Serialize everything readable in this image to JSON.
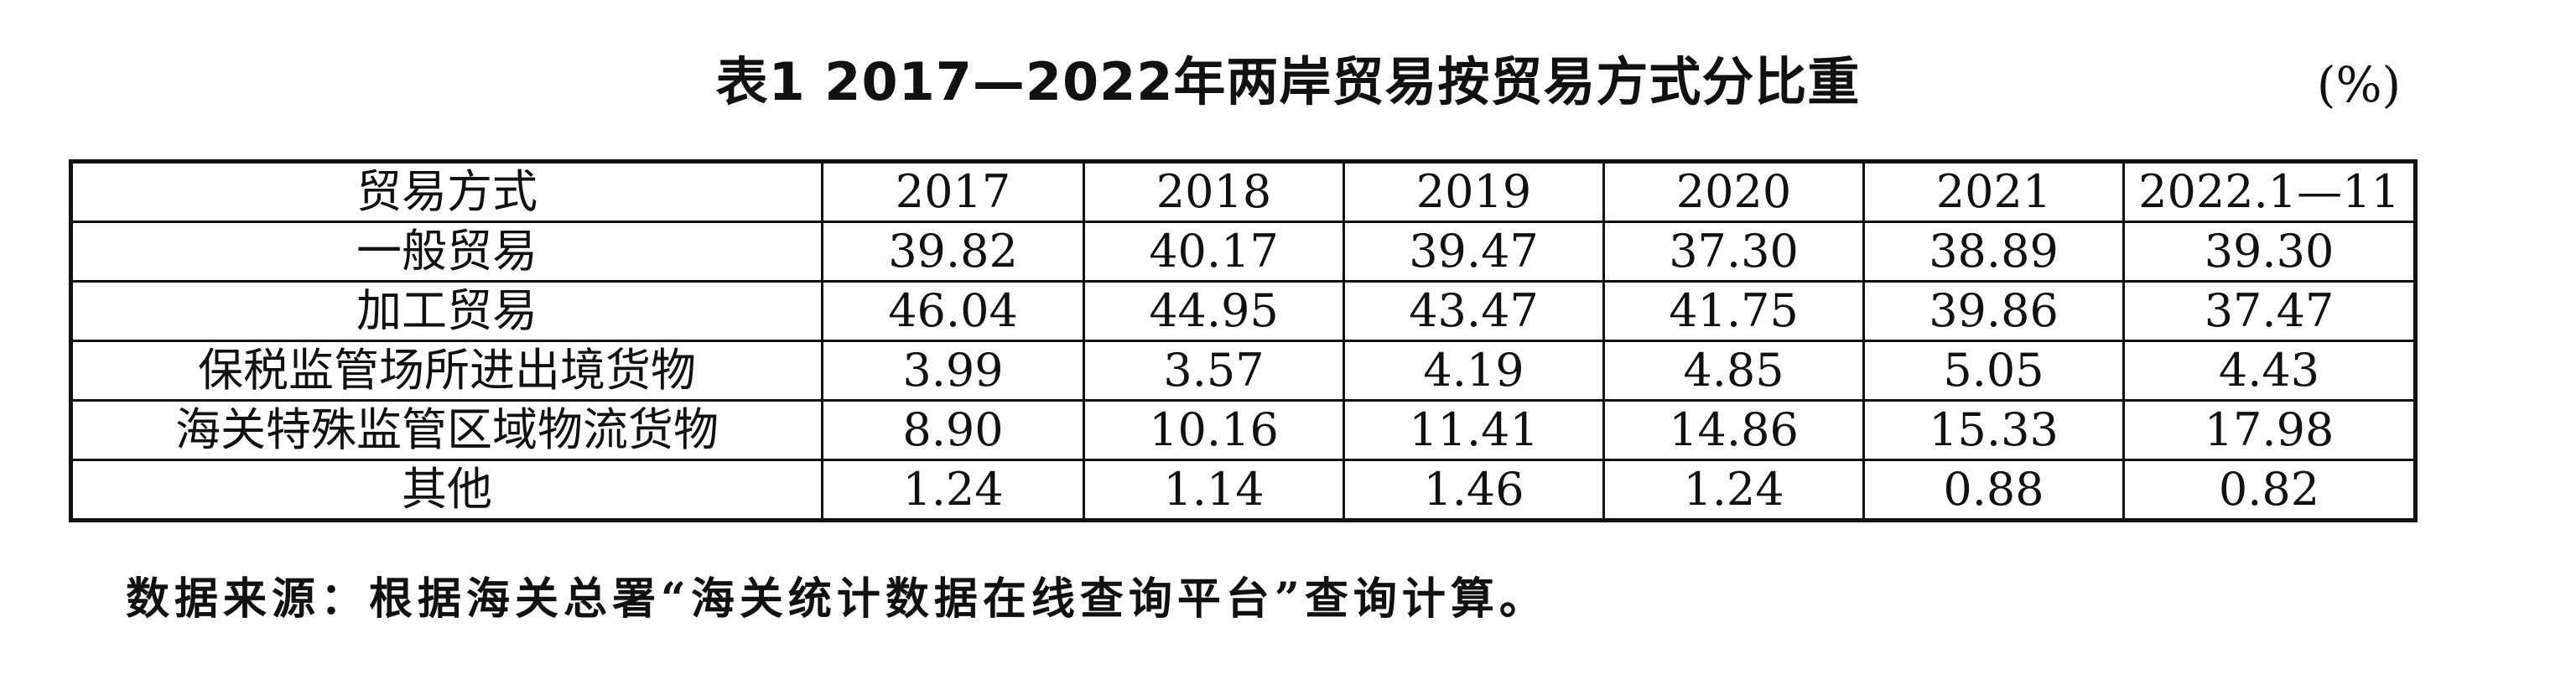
{
  "title": "表1  2017—2022年两岸贸易按贸易方式分比重",
  "unit": "(%)",
  "table": {
    "header": {
      "label": "贸易方式",
      "years": [
        "2017",
        "2018",
        "2019",
        "2020",
        "2021",
        "2022.1—11"
      ]
    },
    "rows": [
      {
        "label": "一般贸易",
        "values": [
          "39.82",
          "40.17",
          "39.47",
          "37.30",
          "38.89",
          "39.30"
        ]
      },
      {
        "label": "加工贸易",
        "values": [
          "46.04",
          "44.95",
          "43.47",
          "41.75",
          "39.86",
          "37.47"
        ]
      },
      {
        "label": "保税监管场所进出境货物",
        "values": [
          "3.99",
          "3.57",
          "4.19",
          "4.85",
          "5.05",
          "4.43"
        ]
      },
      {
        "label": "海关特殊监管区域物流货物",
        "values": [
          "8.90",
          "10.16",
          "11.41",
          "14.86",
          "15.33",
          "17.98"
        ]
      },
      {
        "label": "其他",
        "values": [
          "1.24",
          "1.14",
          "1.46",
          "1.24",
          "0.88",
          "0.82"
        ]
      }
    ]
  },
  "source": "数据来源：根据海关总署“海关统计数据在线查询平台”查询计算。"
}
